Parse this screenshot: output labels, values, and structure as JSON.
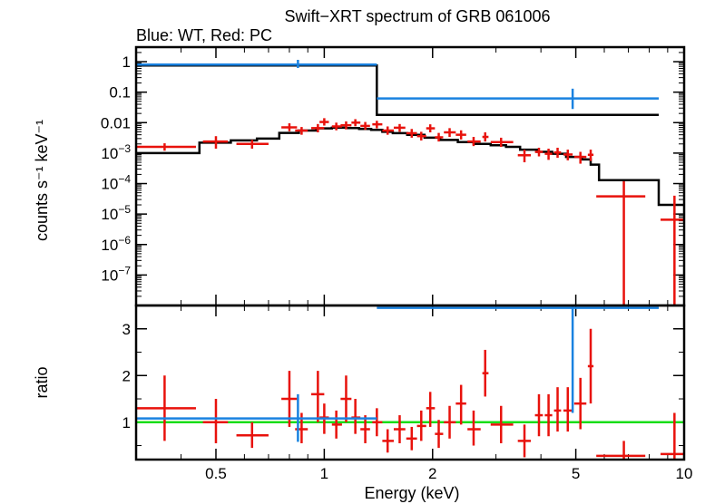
{
  "chart_data": {
    "title": "Swift−XRT spectrum of GRB 061006",
    "subtitle": "Blue: WT, Red: PC",
    "xlabel": "Energy (keV)",
    "xscale": "log",
    "xlim": [
      0.3,
      10
    ],
    "xticks": [
      "0.5",
      "1",
      "2",
      "5",
      "10"
    ],
    "xtick_values": [
      0.5,
      1,
      2,
      5,
      10
    ],
    "colors": {
      "WT": "#1a82e0",
      "PC": "#e8120c",
      "model": "#000000",
      "unity": "#18dd18"
    },
    "panels": [
      {
        "type": "line",
        "ylabel": "counts s⁻¹ keV⁻¹",
        "yscale": "log",
        "ylim": [
          1e-08,
          3
        ],
        "yticks": [
          {
            "v": 1,
            "t": "1"
          },
          {
            "v": 0.1,
            "t": "0.1"
          },
          {
            "v": 0.01,
            "t": "0.01"
          },
          {
            "v": 0.001,
            "b": "10",
            "e": "−3"
          },
          {
            "v": 0.0001,
            "b": "10",
            "e": "−4"
          },
          {
            "v": 1e-05,
            "b": "10",
            "e": "−5"
          },
          {
            "v": 1e-06,
            "b": "10",
            "e": "−6"
          },
          {
            "v": 1e-07,
            "b": "10",
            "e": "−7"
          }
        ],
        "series": [
          {
            "key": "WT",
            "points": [
              {
                "x": 0.845,
                "xl": 0.3,
                "xh": 1.4,
                "y": 0.8,
                "yl": 0.62,
                "yh": 1.15
              },
              {
                "x": 4.9,
                "xl": 1.4,
                "xh": 8.5,
                "y": 0.062,
                "yl": 0.028,
                "yh": 0.13
              }
            ]
          },
          {
            "key": "PC",
            "points": [
              {
                "x": 0.36,
                "xl": 0.3,
                "xh": 0.44,
                "y": 0.0016,
                "yl": 0.0012,
                "yh": 0.0021
              },
              {
                "x": 0.5,
                "xl": 0.46,
                "xh": 0.54,
                "y": 0.0024,
                "yl": 0.0014,
                "yh": 0.0036
              },
              {
                "x": 0.63,
                "xl": 0.57,
                "xh": 0.7,
                "y": 0.002,
                "yl": 0.0014,
                "yh": 0.0027
              },
              {
                "x": 0.8,
                "xl": 0.76,
                "xh": 0.84,
                "y": 0.007,
                "yl": 0.0052,
                "yh": 0.0095
              },
              {
                "x": 0.865,
                "xl": 0.83,
                "xh": 0.9,
                "y": 0.0055,
                "yl": 0.004,
                "yh": 0.0072
              },
              {
                "x": 0.96,
                "xl": 0.92,
                "xh": 1.0,
                "y": 0.0066,
                "yl": 0.0048,
                "yh": 0.009
              },
              {
                "x": 1.0,
                "xl": 0.97,
                "xh": 1.03,
                "y": 0.0105,
                "yl": 0.008,
                "yh": 0.014
              },
              {
                "x": 1.08,
                "xl": 1.05,
                "xh": 1.12,
                "y": 0.0075,
                "yl": 0.0056,
                "yh": 0.01
              },
              {
                "x": 1.15,
                "xl": 1.11,
                "xh": 1.19,
                "y": 0.0082,
                "yl": 0.006,
                "yh": 0.011
              },
              {
                "x": 1.22,
                "xl": 1.19,
                "xh": 1.26,
                "y": 0.01,
                "yl": 0.0076,
                "yh": 0.013
              },
              {
                "x": 1.3,
                "xl": 1.26,
                "xh": 1.34,
                "y": 0.0078,
                "yl": 0.0058,
                "yh": 0.0105
              },
              {
                "x": 1.4,
                "xl": 1.36,
                "xh": 1.45,
                "y": 0.0088,
                "yl": 0.0065,
                "yh": 0.0115
              },
              {
                "x": 1.5,
                "xl": 1.45,
                "xh": 1.56,
                "y": 0.0055,
                "yl": 0.004,
                "yh": 0.0075
              },
              {
                "x": 1.62,
                "xl": 1.56,
                "xh": 1.68,
                "y": 0.0068,
                "yl": 0.005,
                "yh": 0.009
              },
              {
                "x": 1.75,
                "xl": 1.69,
                "xh": 1.81,
                "y": 0.0045,
                "yl": 0.0032,
                "yh": 0.0062
              },
              {
                "x": 1.86,
                "xl": 1.81,
                "xh": 1.92,
                "y": 0.0036,
                "yl": 0.0026,
                "yh": 0.005
              },
              {
                "x": 1.97,
                "xl": 1.92,
                "xh": 2.03,
                "y": 0.0065,
                "yl": 0.0048,
                "yh": 0.0088
              },
              {
                "x": 2.08,
                "xl": 2.03,
                "xh": 2.14,
                "y": 0.0033,
                "yl": 0.0024,
                "yh": 0.0046
              },
              {
                "x": 2.23,
                "xl": 2.15,
                "xh": 2.32,
                "y": 0.0048,
                "yl": 0.0034,
                "yh": 0.0066
              },
              {
                "x": 2.4,
                "xl": 2.32,
                "xh": 2.48,
                "y": 0.004,
                "yl": 0.0028,
                "yh": 0.0056
              },
              {
                "x": 2.6,
                "xl": 2.5,
                "xh": 2.72,
                "y": 0.0024,
                "yl": 0.0017,
                "yh": 0.0034
              },
              {
                "x": 2.8,
                "xl": 2.75,
                "xh": 2.86,
                "y": 0.0034,
                "yl": 0.0024,
                "yh": 0.0048
              },
              {
                "x": 3.1,
                "xl": 2.9,
                "xh": 3.35,
                "y": 0.0023,
                "yl": 0.0016,
                "yh": 0.0032
              },
              {
                "x": 3.6,
                "xl": 3.45,
                "xh": 3.75,
                "y": 0.00085,
                "yl": 0.0005,
                "yh": 0.0013
              },
              {
                "x": 3.95,
                "xl": 3.85,
                "xh": 4.05,
                "y": 0.0011,
                "yl": 0.00078,
                "yh": 0.0015
              },
              {
                "x": 4.2,
                "xl": 4.1,
                "xh": 4.3,
                "y": 0.00095,
                "yl": 0.0006,
                "yh": 0.0014
              },
              {
                "x": 4.45,
                "xl": 4.35,
                "xh": 4.55,
                "y": 0.00105,
                "yl": 0.0007,
                "yh": 0.0015
              },
              {
                "x": 4.75,
                "xl": 4.62,
                "xh": 4.9,
                "y": 0.0009,
                "yl": 0.00058,
                "yh": 0.0013
              },
              {
                "x": 5.15,
                "xl": 4.95,
                "xh": 5.35,
                "y": 0.00075,
                "yl": 0.00045,
                "yh": 0.0011
              },
              {
                "x": 5.5,
                "xl": 5.4,
                "xh": 5.6,
                "y": 0.00088,
                "yl": 0.00055,
                "yh": 0.0013
              },
              {
                "x": 6.8,
                "xl": 5.7,
                "xh": 7.8,
                "y": 3.8e-05,
                "yl": 1e-08,
                "yh": 0.00012
              },
              {
                "x": 9.4,
                "xl": 8.6,
                "xh": 10.0,
                "y": 6.5e-06,
                "yl": 1e-08,
                "yh": 4e-05
              }
            ]
          }
        ],
        "model_steps": [
          [
            0.3,
            0.001
          ],
          [
            0.45,
            0.0022
          ],
          [
            0.55,
            0.0026
          ],
          [
            0.65,
            0.003
          ],
          [
            0.75,
            0.0046
          ],
          [
            0.85,
            0.0055
          ],
          [
            0.95,
            0.0065
          ],
          [
            1.05,
            0.0068
          ],
          [
            1.15,
            0.0066
          ],
          [
            1.25,
            0.0062
          ],
          [
            1.35,
            0.0058
          ],
          [
            1.45,
            0.005
          ],
          [
            1.55,
            0.0045
          ],
          [
            1.7,
            0.004
          ],
          [
            1.9,
            0.0032
          ],
          [
            2.1,
            0.0027
          ],
          [
            2.35,
            0.0023
          ],
          [
            2.6,
            0.002
          ],
          [
            2.9,
            0.0018
          ],
          [
            3.2,
            0.0016
          ],
          [
            3.5,
            0.0013
          ],
          [
            3.9,
            0.0011
          ],
          [
            4.3,
            0.00095
          ],
          [
            4.7,
            0.00075
          ],
          [
            5.2,
            0.00062
          ],
          [
            5.5,
            0.00042
          ],
          [
            5.8,
            0.00013
          ],
          [
            8.5,
            2e-05
          ],
          [
            10.0,
            2e-05
          ]
        ],
        "model_wt_steps": [
          [
            0.3,
            0.75
          ],
          [
            1.4,
            0.75
          ],
          [
            1.4,
            0.018
          ],
          [
            8.5,
            0.018
          ]
        ]
      },
      {
        "type": "line",
        "ylabel": "ratio",
        "yscale": "linear",
        "ylim": [
          0.2,
          3.5
        ],
        "yticks": [
          {
            "v": 1,
            "t": "1"
          },
          {
            "v": 2,
            "t": "2"
          },
          {
            "v": 3,
            "t": "3"
          }
        ],
        "unity": 1,
        "series": [
          {
            "key": "WT",
            "points": [
              {
                "x": 0.845,
                "xl": 0.3,
                "xh": 1.4,
                "y": 1.08,
                "yl": 0.58,
                "yh": 1.6
              },
              {
                "x": 4.9,
                "xl": 1.4,
                "xh": 8.5,
                "y": 3.45,
                "yl": 1.2,
                "yh": 3.6
              }
            ]
          },
          {
            "key": "PC",
            "points": [
              {
                "x": 0.36,
                "xl": 0.3,
                "xh": 0.44,
                "y": 1.3,
                "yl": 0.6,
                "yh": 2.0
              },
              {
                "x": 0.5,
                "xl": 0.46,
                "xh": 0.54,
                "y": 1.0,
                "yl": 0.55,
                "yh": 1.5
              },
              {
                "x": 0.63,
                "xl": 0.57,
                "xh": 0.7,
                "y": 0.72,
                "yl": 0.45,
                "yh": 1.0
              },
              {
                "x": 0.8,
                "xl": 0.76,
                "xh": 0.84,
                "y": 1.5,
                "yl": 0.9,
                "yh": 2.1
              },
              {
                "x": 0.865,
                "xl": 0.83,
                "xh": 0.9,
                "y": 0.85,
                "yl": 0.55,
                "yh": 1.2
              },
              {
                "x": 0.96,
                "xl": 0.92,
                "xh": 1.0,
                "y": 1.6,
                "yl": 1.0,
                "yh": 2.1
              },
              {
                "x": 1.0,
                "xl": 0.97,
                "xh": 1.03,
                "y": 1.1,
                "yl": 0.75,
                "yh": 1.4
              },
              {
                "x": 1.08,
                "xl": 1.05,
                "xh": 1.12,
                "y": 0.95,
                "yl": 0.65,
                "yh": 1.25
              },
              {
                "x": 1.15,
                "xl": 1.11,
                "xh": 1.19,
                "y": 1.5,
                "yl": 1.0,
                "yh": 2.0
              },
              {
                "x": 1.22,
                "xl": 1.19,
                "xh": 1.26,
                "y": 1.1,
                "yl": 0.75,
                "yh": 1.5
              },
              {
                "x": 1.3,
                "xl": 1.26,
                "xh": 1.34,
                "y": 0.85,
                "yl": 0.55,
                "yh": 1.15
              },
              {
                "x": 1.4,
                "xl": 1.36,
                "xh": 1.45,
                "y": 1.0,
                "yl": 0.7,
                "yh": 1.3
              },
              {
                "x": 1.5,
                "xl": 1.45,
                "xh": 1.56,
                "y": 0.6,
                "yl": 0.35,
                "yh": 0.85
              },
              {
                "x": 1.62,
                "xl": 1.56,
                "xh": 1.68,
                "y": 0.85,
                "yl": 0.55,
                "yh": 1.15
              },
              {
                "x": 1.75,
                "xl": 1.69,
                "xh": 1.81,
                "y": 0.65,
                "yl": 0.4,
                "yh": 0.9
              },
              {
                "x": 1.86,
                "xl": 1.81,
                "xh": 1.92,
                "y": 0.92,
                "yl": 0.6,
                "yh": 1.25
              },
              {
                "x": 1.97,
                "xl": 1.92,
                "xh": 2.03,
                "y": 1.3,
                "yl": 0.9,
                "yh": 1.65
              },
              {
                "x": 2.08,
                "xl": 2.03,
                "xh": 2.14,
                "y": 0.75,
                "yl": 0.45,
                "yh": 1.05
              },
              {
                "x": 2.23,
                "xl": 2.15,
                "xh": 2.32,
                "y": 1.0,
                "yl": 0.65,
                "yh": 1.35
              },
              {
                "x": 2.4,
                "xl": 2.32,
                "xh": 2.48,
                "y": 1.4,
                "yl": 0.95,
                "yh": 1.8
              },
              {
                "x": 2.6,
                "xl": 2.5,
                "xh": 2.72,
                "y": 0.85,
                "yl": 0.5,
                "yh": 1.25
              },
              {
                "x": 2.8,
                "xl": 2.75,
                "xh": 2.86,
                "y": 2.05,
                "yl": 1.55,
                "yh": 2.55
              },
              {
                "x": 3.1,
                "xl": 2.9,
                "xh": 3.35,
                "y": 0.95,
                "yl": 0.55,
                "yh": 1.35
              },
              {
                "x": 3.6,
                "xl": 3.45,
                "xh": 3.75,
                "y": 0.6,
                "yl": 0.25,
                "yh": 0.95
              },
              {
                "x": 3.95,
                "xl": 3.85,
                "xh": 4.05,
                "y": 1.15,
                "yl": 0.7,
                "yh": 1.6
              },
              {
                "x": 4.2,
                "xl": 4.1,
                "xh": 4.3,
                "y": 1.15,
                "yl": 0.7,
                "yh": 1.6
              },
              {
                "x": 4.45,
                "xl": 4.35,
                "xh": 4.55,
                "y": 1.25,
                "yl": 0.8,
                "yh": 1.75
              },
              {
                "x": 4.75,
                "xl": 4.62,
                "xh": 4.9,
                "y": 1.25,
                "yl": 0.8,
                "yh": 1.75
              },
              {
                "x": 5.15,
                "xl": 4.95,
                "xh": 5.35,
                "y": 1.4,
                "yl": 0.85,
                "yh": 1.95
              },
              {
                "x": 5.5,
                "xl": 5.4,
                "xh": 5.6,
                "y": 2.2,
                "yl": 1.4,
                "yh": 3.0
              },
              {
                "x": 6.8,
                "xl": 5.7,
                "xh": 7.8,
                "y": 0.28,
                "yl": 0.2,
                "yh": 0.6
              },
              {
                "x": 9.4,
                "xl": 8.6,
                "xh": 10.0,
                "y": 0.32,
                "yl": 0.2,
                "yh": 1.2
              }
            ]
          }
        ]
      }
    ]
  }
}
